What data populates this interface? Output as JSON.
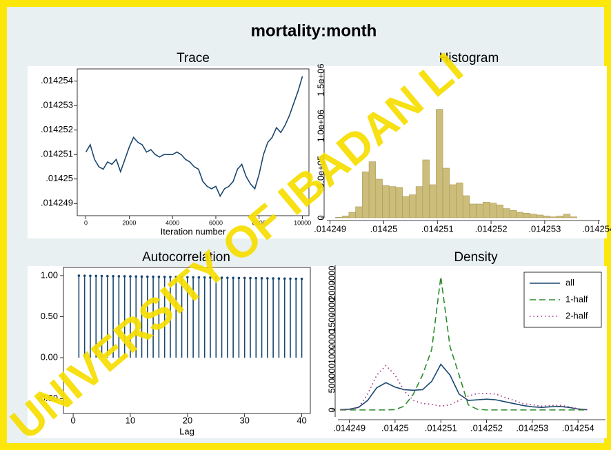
{
  "title": "mortality:month",
  "watermark": "UNIVERSITY OF IBADAN LI",
  "chart_data": [
    {
      "type": "line",
      "title": "Trace",
      "xlabel": "Iteration number",
      "color": "#1a476f",
      "x": [
        0,
        200,
        400,
        600,
        800,
        1000,
        1200,
        1400,
        1600,
        1800,
        2000,
        2200,
        2400,
        2600,
        2800,
        3000,
        3200,
        3400,
        3600,
        3800,
        4000,
        4200,
        4400,
        4600,
        4800,
        5000,
        5200,
        5400,
        5600,
        5800,
        6000,
        6200,
        6400,
        6600,
        6800,
        7000,
        7200,
        7400,
        7600,
        7800,
        8000,
        8200,
        8400,
        8600,
        8800,
        9000,
        9200,
        9400,
        9600,
        9800,
        10000
      ],
      "values": [
        0.0142511,
        0.0142514,
        0.0142508,
        0.0142505,
        0.0142504,
        0.0142507,
        0.0142506,
        0.0142508,
        0.0142503,
        0.0142508,
        0.0142513,
        0.0142517,
        0.0142515,
        0.0142514,
        0.0142511,
        0.0142512,
        0.014251,
        0.0142509,
        0.014251,
        0.014251,
        0.014251,
        0.0142511,
        0.014251,
        0.0142508,
        0.0142507,
        0.0142505,
        0.0142504,
        0.0142499,
        0.0142497,
        0.0142496,
        0.0142497,
        0.0142493,
        0.0142496,
        0.0142497,
        0.0142499,
        0.0142504,
        0.0142506,
        0.0142501,
        0.0142498,
        0.0142496,
        0.0142502,
        0.014251,
        0.0142515,
        0.0142517,
        0.0142521,
        0.0142519,
        0.0142522,
        0.0142526,
        0.0142531,
        0.0142536,
        0.0142542
      ],
      "xlim": [
        -400,
        10300
      ],
      "ylim": [
        0.0142485,
        0.0142545
      ],
      "xticks": [
        0,
        2000,
        4000,
        6000,
        8000,
        10000
      ],
      "yticks": [
        {
          "value": 0.014249,
          "label": ".014249"
        },
        {
          "value": 0.01425,
          "label": ".01425"
        },
        {
          "value": 0.014251,
          "label": ".014251"
        },
        {
          "value": 0.014252,
          "label": ".014252"
        },
        {
          "value": 0.014253,
          "label": ".014253"
        },
        {
          "value": 0.014254,
          "label": ".014254"
        }
      ]
    },
    {
      "type": "histogram",
      "title": "Histogram",
      "color": "#cdbd7a",
      "bins": [
        0.0142491,
        0.014249225,
        0.01424935,
        0.014249475,
        0.0142496,
        0.014249725,
        0.01424985,
        0.014249975,
        0.0142501,
        0.014250225,
        0.01425035,
        0.014250475,
        0.0142506,
        0.014250725,
        0.01425085,
        0.014250975,
        0.0142511,
        0.014251225,
        0.01425135,
        0.014251475,
        0.0142516,
        0.014251725,
        0.01425185,
        0.014251975,
        0.0142521,
        0.014252225,
        0.01425235,
        0.014252475,
        0.0142526,
        0.014252725,
        0.01425285,
        0.014252975,
        0.0142531,
        0.014253225,
        0.01425335,
        0.014253475,
        0.0142536
      ],
      "values": [
        5000,
        20000,
        60000,
        120000,
        500000,
        610000,
        420000,
        350000,
        340000,
        330000,
        230000,
        250000,
        340000,
        630000,
        360000,
        1180000,
        540000,
        360000,
        380000,
        240000,
        150000,
        150000,
        170000,
        160000,
        140000,
        100000,
        80000,
        60000,
        50000,
        40000,
        30000,
        20000,
        10000,
        20000,
        40000,
        10000
      ],
      "xlim": [
        0.01424894,
        0.01425403
      ],
      "ylim": [
        0,
        1620000
      ],
      "xticks": [
        {
          "value": 0.014249,
          "label": ".014249"
        },
        {
          "value": 0.01425,
          "label": ".01425"
        },
        {
          "value": 0.014251,
          "label": ".014251"
        },
        {
          "value": 0.014252,
          "label": ".014252"
        },
        {
          "value": 0.014253,
          "label": ".014253"
        },
        {
          "value": 0.014254,
          "label": ".014254"
        }
      ],
      "yticks": [
        0,
        {
          "value": 500000,
          "label": "5.0e+05"
        },
        {
          "value": 1000000,
          "label": "1.0e+06"
        },
        {
          "value": 1500000,
          "label": "1.5e+06"
        }
      ]
    },
    {
      "type": "stem",
      "title": "Autocorrelation",
      "xlabel": "Lag",
      "color": "#1a476f",
      "x": [
        1,
        2,
        3,
        4,
        5,
        6,
        7,
        8,
        9,
        10,
        11,
        12,
        13,
        14,
        15,
        16,
        17,
        18,
        19,
        20,
        21,
        22,
        23,
        24,
        25,
        26,
        27,
        28,
        29,
        30,
        31,
        32,
        33,
        34,
        35,
        36,
        37,
        38,
        39,
        40
      ],
      "values": [
        0.999,
        0.998,
        0.997,
        0.996,
        0.995,
        0.994,
        0.993,
        0.992,
        0.991,
        0.99,
        0.989,
        0.988,
        0.987,
        0.986,
        0.985,
        0.984,
        0.983,
        0.982,
        0.981,
        0.98,
        0.979,
        0.978,
        0.977,
        0.976,
        0.975,
        0.974,
        0.973,
        0.972,
        0.971,
        0.97,
        0.969,
        0.968,
        0.967,
        0.966,
        0.965,
        0.964,
        0.963,
        0.962,
        0.961,
        0.96
      ],
      "xlim": [
        -1.7,
        41.5
      ],
      "ylim": [
        -0.68,
        1.1
      ],
      "xticks": [
        0,
        10,
        20,
        30,
        40
      ],
      "yticks": [
        {
          "value": 1,
          "label": "1.00"
        },
        {
          "value": 0.5,
          "label": "0.50"
        },
        {
          "value": 0,
          "label": "0.00"
        },
        {
          "value": -0.5,
          "label": "-0.50"
        }
      ]
    },
    {
      "type": "line",
      "title": "Density",
      "legend": "top-right",
      "x": [
        0.0142488,
        0.014249,
        0.0142492,
        0.0142494,
        0.0142496,
        0.0142498,
        0.01425,
        0.0142502,
        0.0142504,
        0.0142506,
        0.0142508,
        0.014251,
        0.0142512,
        0.0142514,
        0.0142516,
        0.0142518,
        0.014252,
        0.0142522,
        0.0142524,
        0.0142526,
        0.0142528,
        0.014253,
        0.0142532,
        0.0142534,
        0.0142536,
        0.0142538,
        0.014254,
        0.0142542
      ],
      "series": [
        {
          "name": "all",
          "color": "#1a476f",
          "style": "solid",
          "values": [
            5000,
            12000,
            40000,
            150000,
            350000,
            430000,
            360000,
            320000,
            310000,
            320000,
            450000,
            720000,
            550000,
            250000,
            150000,
            160000,
            170000,
            160000,
            130000,
            100000,
            70000,
            50000,
            40000,
            50000,
            55000,
            40000,
            15000,
            3000
          ]
        },
        {
          "name": "1-half",
          "color": "#2a8a2a",
          "style": "dashed",
          "values": [
            0,
            0,
            0,
            0,
            0,
            0,
            5000,
            60000,
            250000,
            550000,
            950000,
            2100000,
            1000000,
            550000,
            80000,
            10000,
            0,
            0,
            0,
            0,
            0,
            0,
            0,
            0,
            0,
            0,
            0,
            0
          ]
        },
        {
          "name": "2-half",
          "color": "#a0287a",
          "style": "dotted",
          "values": [
            0,
            10000,
            40000,
            250000,
            550000,
            700000,
            550000,
            300000,
            150000,
            100000,
            90000,
            60000,
            80000,
            150000,
            220000,
            260000,
            260000,
            250000,
            200000,
            150000,
            100000,
            80000,
            60000,
            70000,
            75000,
            50000,
            20000,
            3000
          ]
        }
      ],
      "xlim": [
        0.01424875,
        0.0142546
      ],
      "ylim": [
        -110000,
        2280000
      ],
      "xticks": [
        {
          "value": 0.014249,
          "label": ".014249"
        },
        {
          "value": 0.01425,
          "label": ".01425"
        },
        {
          "value": 0.014251,
          "label": ".014251"
        },
        {
          "value": 0.014252,
          "label": ".014252"
        },
        {
          "value": 0.014253,
          "label": ".014253"
        },
        {
          "value": 0.014254,
          "label": ".014254"
        }
      ],
      "yticks": [
        0,
        500000,
        1000000,
        1500000,
        2000000
      ]
    }
  ]
}
